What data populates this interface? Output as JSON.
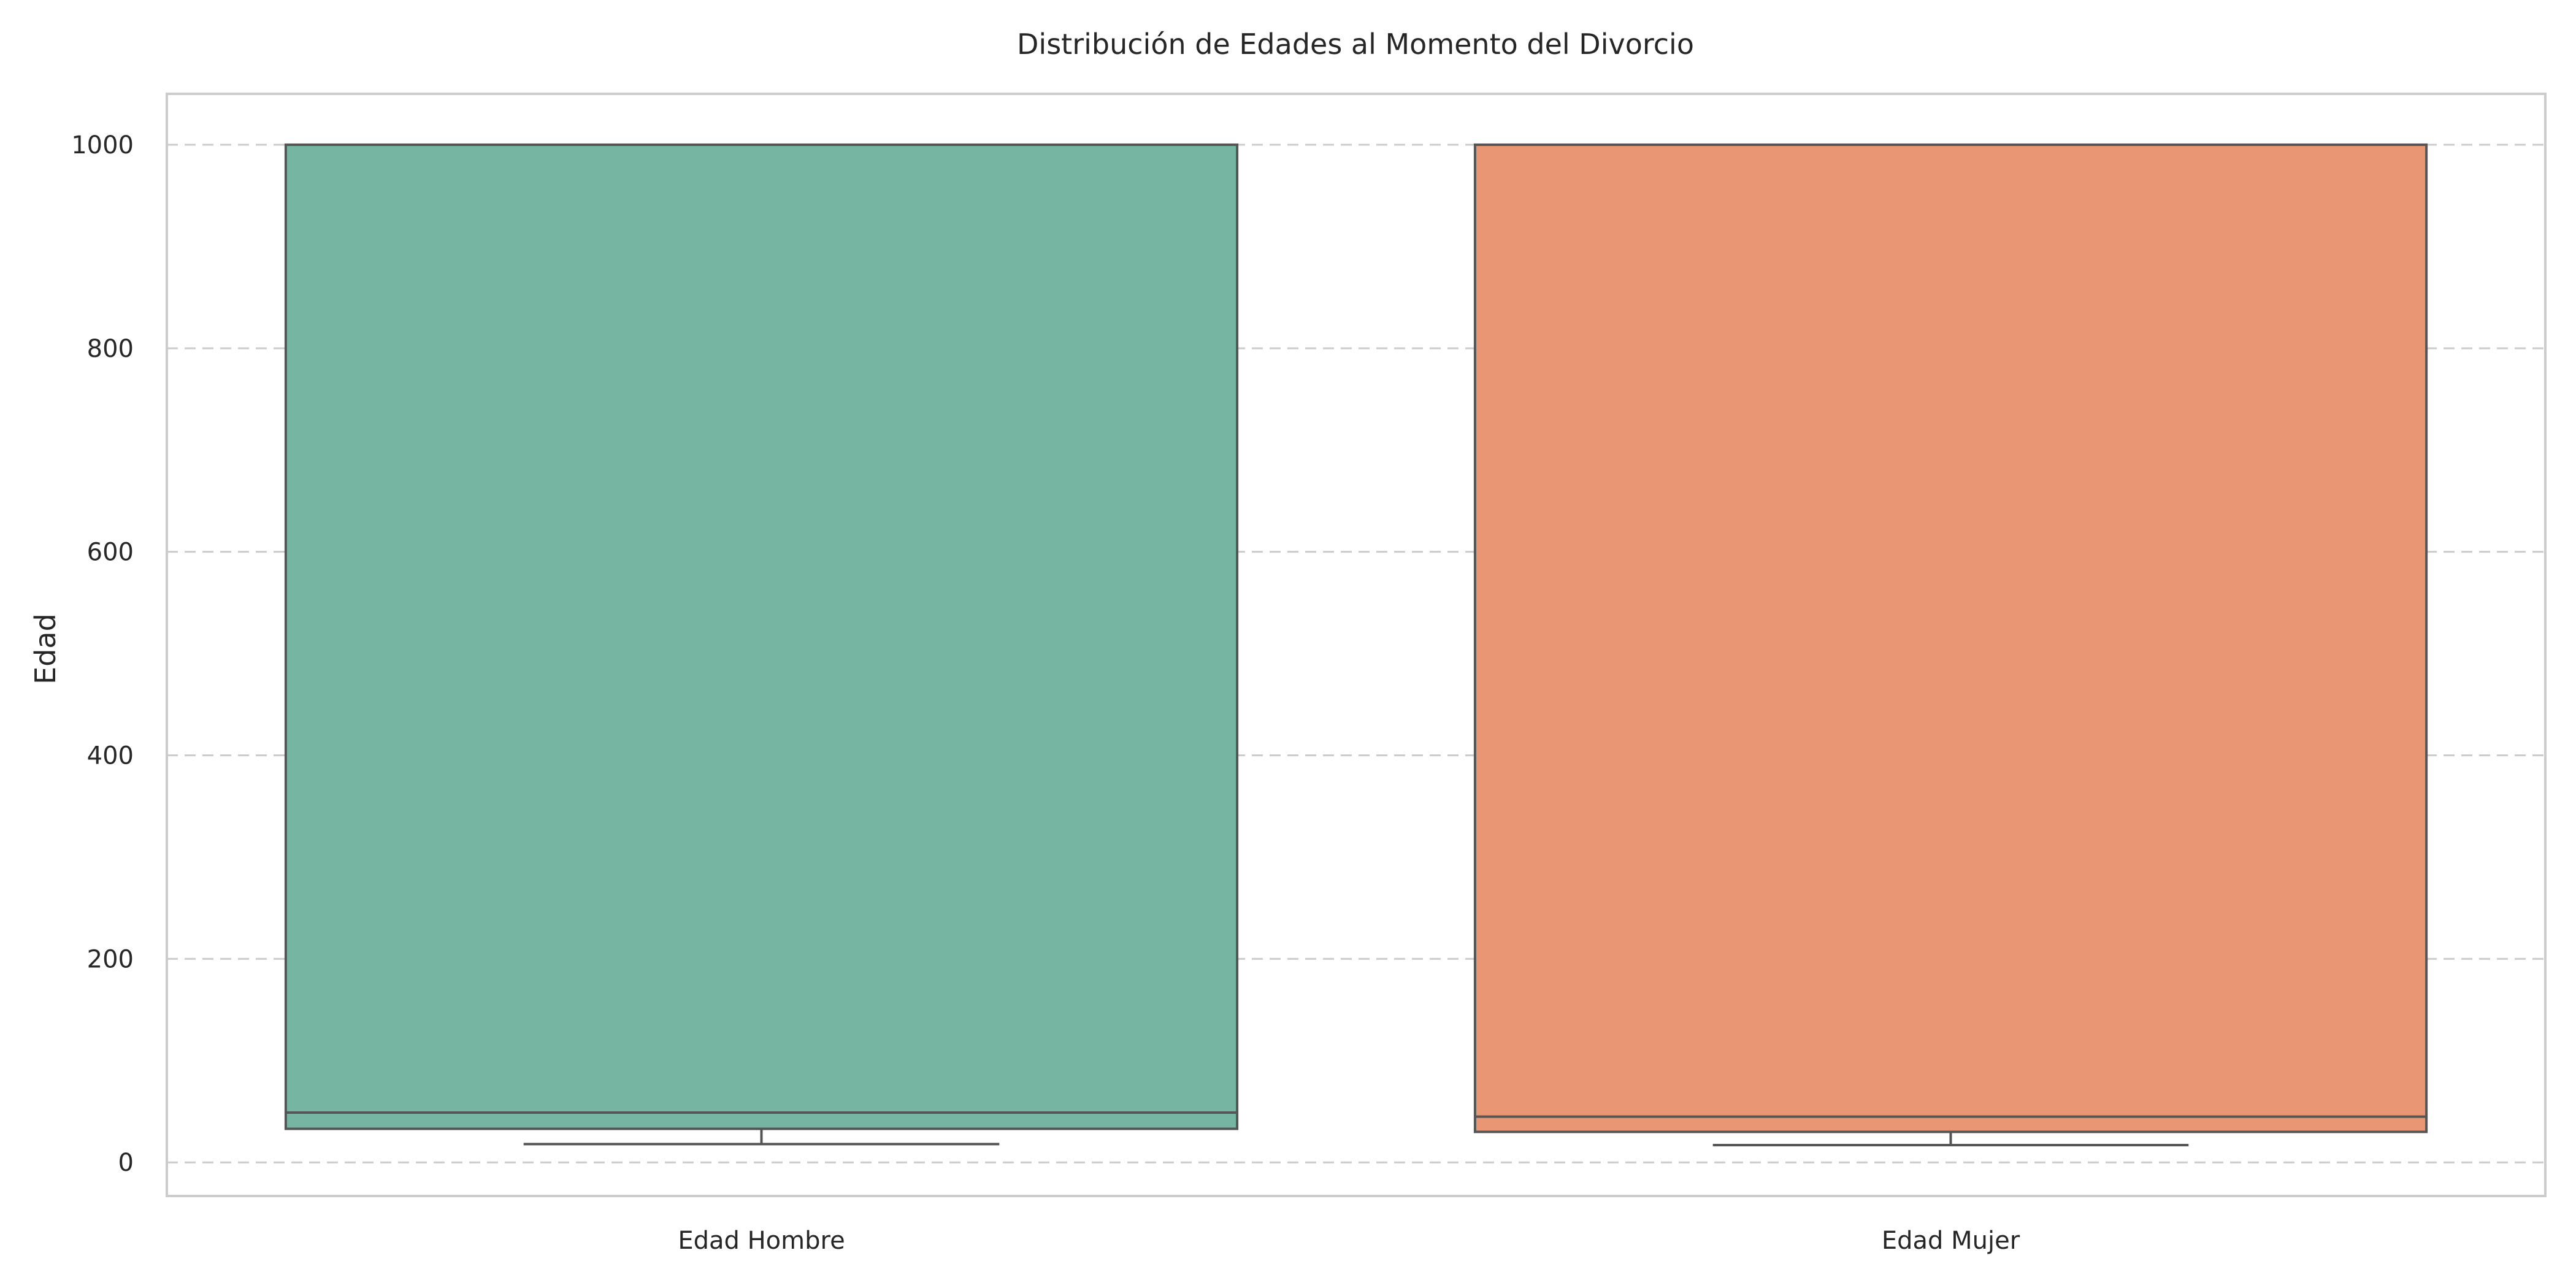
{
  "chart_data": {
    "type": "box",
    "title": "Distribución de Edades al Momento del Divorcio",
    "xlabel": "",
    "ylabel": "Edad",
    "ylim": [
      -33,
      1050
    ],
    "yticks": [
      0,
      200,
      400,
      600,
      800,
      1000
    ],
    "grid": "y",
    "categories": [
      "Edad Hombre",
      "Edad Mujer"
    ],
    "boxes": [
      {
        "category": "Edad Hombre",
        "whisker_low": 18,
        "q1": 33,
        "median": 49,
        "q3": 1000,
        "whisker_high": 1000,
        "color": "#76b5a1"
      },
      {
        "category": "Edad Mujer",
        "whisker_low": 17,
        "q1": 30,
        "median": 45,
        "q3": 1000,
        "whisker_high": 1000,
        "color": "#e99675"
      }
    ]
  }
}
